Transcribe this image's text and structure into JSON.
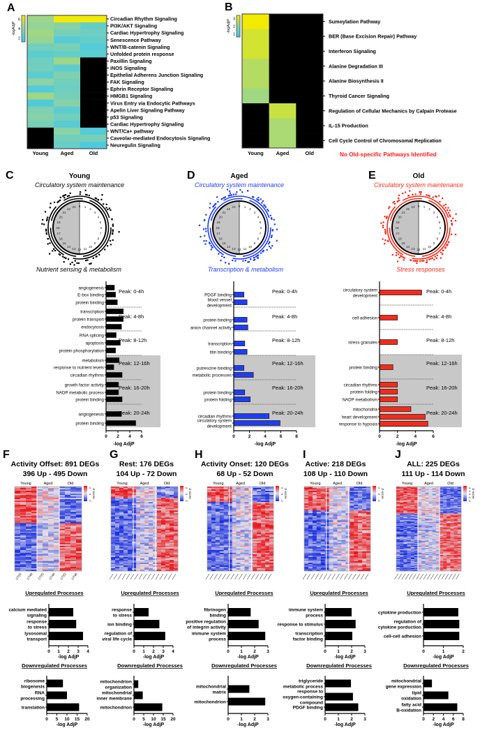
{
  "chart_data": [
    {
      "letter": "A",
      "type": "heatmap",
      "colorbar_label": "-logAdjP",
      "colorbar_ticks": [
        "6",
        "4",
        "2"
      ],
      "colorbar_range": [
        1,
        7
      ],
      "columns": [
        "Young",
        "Aged",
        "Old"
      ],
      "rows": [
        "Circadian Rhythm Signaling",
        "PI3K/AKT Signaling",
        "Cardiac Hypertrophy Signaling",
        "Senescence Pathway",
        "WNT/B-catenin Signaling",
        "Unfolded protein response",
        "Paxillin Signaling",
        "iNOS Signaling",
        "Epithelial Adherens Junction Signaling",
        "FAK Signaling",
        "Ephrin Receptor Signaling",
        "HMGB1 Signaling",
        "Virus Entry via Endocytic Pathways",
        "Apelin Liver Signaling Pathway",
        "p53 Signaling",
        "Cardiac Hypertrophy Signaling",
        "WNT/Ca+ pathway",
        "Caveolar-mediated Endocytosis Signaling",
        "Neuregulin Signaling"
      ],
      "values": [
        [
          4.5,
          7,
          7
        ],
        [
          4.2,
          3.8,
          2.5
        ],
        [
          4.6,
          3.2,
          2.8
        ],
        [
          4.3,
          2.0,
          2.5
        ],
        [
          3.0,
          3.3,
          1.8
        ],
        [
          2.2,
          2.5,
          2.2
        ],
        [
          2.8,
          4.5,
          null
        ],
        [
          3.0,
          2.2,
          null
        ],
        [
          2.2,
          3.5,
          null
        ],
        [
          4.0,
          3.0,
          null
        ],
        [
          1.8,
          2.8,
          null
        ],
        [
          4.6,
          3.2,
          null
        ],
        [
          1.7,
          3.8,
          null
        ],
        [
          3.5,
          2.2,
          null
        ],
        [
          3.8,
          3.0,
          null
        ],
        [
          3.2,
          2.0,
          null
        ],
        [
          null,
          4.0,
          1.8
        ],
        [
          null,
          3.0,
          3.2
        ],
        [
          null,
          2.6,
          1.6
        ]
      ]
    },
    {
      "letter": "B",
      "type": "heatmap",
      "colorbar_label": "-logAdjP",
      "colorbar_ticks": [
        "3",
        "2",
        "1"
      ],
      "colorbar_range": [
        1,
        3
      ],
      "columns": [
        "Young",
        "Aged",
        "Old"
      ],
      "rows": [
        "Sumoylation Pathway",
        "BER (Base Excision Repair) Pathway",
        "Interferon Signaling",
        "Alanine Degradation III",
        "Alanine Biosynthesis II",
        "Thyroid Cancer Signaling",
        "Regulation of Cellular Mechanics by Calpain Protease",
        "IL-15 Production",
        "Cell Cycle Control of Chromosomal Replication"
      ],
      "values": [
        [
          3.0,
          null,
          null
        ],
        [
          2.7,
          null,
          null
        ],
        [
          2.7,
          null,
          null
        ],
        [
          2.4,
          null,
          null
        ],
        [
          2.4,
          null,
          null
        ],
        [
          2.2,
          null,
          null
        ],
        [
          null,
          2.6,
          null
        ],
        [
          null,
          2.3,
          null
        ],
        [
          null,
          2.3,
          null
        ]
      ],
      "note": "No Old-specific Pathways Identified"
    },
    {
      "letter": "C",
      "type": "bar",
      "title": "Young",
      "top_theme": "Circulatory system maintenance",
      "bottom_theme": "Nutrient sensing & metabolism",
      "color": "#000000",
      "xlabel": "-log AdjP",
      "xlim": [
        0,
        6
      ],
      "xticks": [
        "0",
        "2",
        "4",
        "6"
      ],
      "peaks": [
        "Peak: 0-4h",
        "Peak: 4-8h",
        "Peak: 8-12h",
        "Peak: 12-16h",
        "Peak: 16-20h",
        "Peak: 20-24h"
      ],
      "bars": [
        {
          "label": [
            "angiogenesis"
          ],
          "value": 1.4
        },
        {
          "label": [
            "E-box binding"
          ],
          "value": 1.6
        },
        {
          "label": [
            "protein binding"
          ],
          "value": 1.9
        },
        {
          "label": [
            "transcription"
          ],
          "value": 2.9
        },
        {
          "label": [
            "protein transport"
          ],
          "value": 2.9
        },
        {
          "label": [
            "endocytosis"
          ],
          "value": 2.6
        },
        {
          "label": [
            "RNA splicing"
          ],
          "value": 1.7
        },
        {
          "label": [
            "apoptosis"
          ],
          "value": 2.4
        },
        {
          "label": [
            "protein phosphorylation"
          ],
          "value": 1.6
        },
        {
          "label": [
            "metabolism"
          ],
          "value": 2.2
        },
        {
          "label": [
            "response to nutrient levels"
          ],
          "value": 1.3
        },
        {
          "label": [
            "circadian rhythms"
          ],
          "value": 2.7
        },
        {
          "label": [
            "growth factor activity"
          ],
          "value": 2.1
        },
        {
          "label": [
            "NADP metabolic process"
          ],
          "value": 2.1
        },
        {
          "label": [
            "protein binding"
          ],
          "value": 2.7
        },
        {
          "label": [
            "angiogenesis"
          ],
          "value": 2.6
        },
        {
          "label": [
            "protein binding"
          ],
          "value": 5.0
        }
      ]
    },
    {
      "letter": "D",
      "type": "bar",
      "title": "Aged",
      "top_theme": "Circulatory system maintenance",
      "bottom_theme": "Transcription & metabolism",
      "color": "#1f3df5",
      "xlabel": "-log AdjP",
      "xlim": [
        0,
        8
      ],
      "xticks": [
        "0",
        "2",
        "4",
        "6",
        "8"
      ],
      "peaks": [
        "Peak: 0-4h",
        "Peak: 4-8h",
        "Peak: 8-12h",
        "Peak: 12-16h",
        "Peak: 16-20h",
        "Peak: 20-24h"
      ],
      "bars": [
        {
          "label": [
            "PDGF binding"
          ],
          "value": 1.3
        },
        {
          "label": [
            "blood vessel",
            "development"
          ],
          "value": 1.7
        },
        {
          "label": [
            "protein binding"
          ],
          "value": 1.7
        },
        {
          "label": [
            "anion channel activity"
          ],
          "value": 1.8
        },
        {
          "label": [
            "transcription"
          ],
          "value": 1.4
        },
        {
          "label": [
            "titin binding"
          ],
          "value": 1.7
        },
        {
          "label": [
            "putrescine binding"
          ],
          "value": 1.3
        },
        {
          "label": [
            "metabolic processes"
          ],
          "value": 2.5
        },
        {
          "label": [
            "protein binding"
          ],
          "value": 1.4
        },
        {
          "label": [
            "protein folding"
          ],
          "value": 2.1
        },
        {
          "label": [
            "circadian rhythms"
          ],
          "value": 4.5
        },
        {
          "label": [
            "circulatory system",
            "development"
          ],
          "value": 5.9
        }
      ]
    },
    {
      "letter": "E",
      "type": "bar",
      "title": "Old",
      "top_theme": "Circulatory system maintenance",
      "bottom_theme": "Stress responses",
      "color": "#f52a1a",
      "xlabel": "-log AdjP",
      "xlim": [
        0,
        6
      ],
      "xticks": [
        "0",
        "2",
        "4",
        "6"
      ],
      "peaks": [
        "Peak: 0-4h",
        "Peak: 4-8h",
        "Peak: 8-12h",
        "Peak: 12-16h",
        "Peak: 16-20h",
        "Peak: 20-24h"
      ],
      "bars": [
        {
          "label": [
            "circulatory system",
            "development"
          ],
          "value": 4.7
        },
        {
          "label": [
            "cell adhesion"
          ],
          "value": 2.0
        },
        {
          "label": [
            "stress granules"
          ],
          "value": 2.0
        },
        {
          "label": [
            "protein binding"
          ],
          "value": 1.5
        },
        {
          "label": [
            "circadian rhythms"
          ],
          "value": 2.0
        },
        {
          "label": [
            "protein folding"
          ],
          "value": 2.0
        },
        {
          "label": [
            "NADP metabolism"
          ],
          "value": 2.0
        },
        {
          "label": [
            "mitochondria"
          ],
          "value": 3.5
        },
        {
          "label": [
            "heart development"
          ],
          "value": 5.1
        },
        {
          "label": [
            "response to hypoxia"
          ],
          "value": 5.4
        }
      ]
    },
    {
      "letter": "F",
      "type": "heatmap",
      "title": "Activity Offset: 891 DEGs",
      "subtitle": "396 Up - 495 Down",
      "groups": [
        "Young",
        "Aged",
        "Old"
      ],
      "colorbar_label": "Z-score",
      "colorbar_ticks": [
        "2",
        "0",
        "-2"
      ],
      "column_labels": [
        "CT22",
        "CT46",
        "CT22",
        "CT46",
        "CT22",
        "CT46"
      ],
      "up": {
        "header": "Upregulated Processes",
        "xlabel": "-log AdjP",
        "xlim": [
          0,
          4
        ],
        "xticks": [
          "0",
          "1",
          "2",
          "3",
          "4"
        ],
        "bars": [
          {
            "label": [
              "calcium mediated",
              "signaling"
            ],
            "value": 2.5
          },
          {
            "label": [
              "response",
              "to stress"
            ],
            "value": 2.8
          },
          {
            "label": [
              "lysosomal",
              "transport"
            ],
            "value": 3.5
          }
        ]
      },
      "down": {
        "header": "Downregulated Processes",
        "xlabel": "-log AdjP",
        "xlim": [
          0,
          20
        ],
        "xticks": [
          "0",
          "5",
          "10",
          "15",
          "20"
        ],
        "bars": [
          {
            "label": [
              "ribosome",
              "biogenesis"
            ],
            "value": 8
          },
          {
            "label": [
              "RNA",
              "processing"
            ],
            "value": 10
          },
          {
            "label": [
              "translation"
            ],
            "value": 16
          }
        ]
      }
    },
    {
      "letter": "G",
      "type": "heatmap",
      "title": "Rest: 176 DEGs",
      "subtitle": "104 Up - 72 Down",
      "groups": [
        "Young",
        "Aged",
        "Old"
      ],
      "colorbar_label": "Z-score",
      "colorbar_ticks": [
        "2",
        "0",
        "-2"
      ],
      "up": {
        "header": "Upregulated Processes",
        "xlabel": "-log AdjP",
        "xlim": [
          0,
          4
        ],
        "xticks": [
          "0",
          "1",
          "2",
          "3",
          "4"
        ],
        "bars": [
          {
            "label": [
              "response",
              "to stress"
            ],
            "value": 1.5
          },
          {
            "label": [
              "ion binding"
            ],
            "value": 2.6
          },
          {
            "label": [
              "regulation of",
              "viral life cycle"
            ],
            "value": 3.2
          }
        ]
      },
      "down": {
        "header": "Downregulated Processes",
        "xlabel": "-log AdjP",
        "xlim": [
          0,
          20
        ],
        "xticks": [
          "0",
          "5",
          "10",
          "15",
          "20"
        ],
        "bars": [
          {
            "label": [
              "mitochondrion",
              "organization"
            ],
            "value": 2.2
          },
          {
            "label": [
              "mitochondrial",
              "inner membrane"
            ],
            "value": 4.5
          },
          {
            "label": [
              "mitochondrion"
            ],
            "value": 14.5
          }
        ]
      }
    },
    {
      "letter": "H",
      "type": "heatmap",
      "title": "Activity Onset: 120 DEGs",
      "subtitle": "68 Up - 52 Down",
      "groups": [
        "Young",
        "Aged",
        "Old"
      ],
      "colorbar_label": "Z-score",
      "colorbar_ticks": [
        "2",
        "0",
        "-2"
      ],
      "up": {
        "header": "Upregulated Processes",
        "xlabel": "-log AdjP",
        "xlim": [
          0,
          3
        ],
        "xticks": [
          "0",
          "1",
          "2",
          "3"
        ],
        "bars": [
          {
            "label": [
              "fibrinogen",
              "binding"
            ],
            "value": 1.7
          },
          {
            "label": [
              "positive regulation",
              "of integrin activity"
            ],
            "value": 2.3
          },
          {
            "label": [
              "immune system",
              "process"
            ],
            "value": 2.8
          }
        ]
      },
      "down": {
        "header": "Downregulated Processes",
        "xlabel": "-log AdjP",
        "xlim": [
          0,
          3
        ],
        "xticks": [
          "0",
          "1",
          "2",
          "3"
        ],
        "bars": [
          {
            "label": [
              "mitochondrial",
              "matrix"
            ],
            "value": 1.6
          },
          {
            "label": [
              "mitochondrion"
            ],
            "value": 2.8
          }
        ]
      }
    },
    {
      "letter": "I",
      "type": "heatmap",
      "title": "Active: 218 DEGs",
      "subtitle": "108 Up - 110 Down",
      "groups": [
        "Young",
        "Aged",
        "Old"
      ],
      "colorbar_label": "Z-score",
      "colorbar_ticks": [
        "2",
        "0",
        "-2"
      ],
      "up": {
        "header": "Upregulated Processes",
        "xlabel": "-log AdjP",
        "xlim": [
          0,
          3
        ],
        "xticks": [
          "0",
          "1",
          "2",
          "3"
        ],
        "bars": [
          {
            "label": [
              "immune system",
              "process"
            ],
            "value": 2.0
          },
          {
            "label": [
              "response to stimulus"
            ],
            "value": 2.3
          },
          {
            "label": [
              "transcription",
              "factor binding"
            ],
            "value": 2.05
          }
        ]
      },
      "down": {
        "header": "Downregulated Processes",
        "xlabel": "-log AdjP",
        "xlim": [
          0,
          3
        ],
        "xticks": [
          "0",
          "1",
          "2",
          "3"
        ],
        "bars": [
          {
            "label": [
              "triglyceride",
              "metabolic process"
            ],
            "value": 1.95
          },
          {
            "label": [
              "response to",
              "oxygen-containing",
              "compound"
            ],
            "value": 2.1
          },
          {
            "label": [
              "PDGF binding"
            ],
            "value": 2.5
          }
        ]
      }
    },
    {
      "letter": "J",
      "type": "heatmap",
      "title": "ALL: 225 DEGs",
      "subtitle": "111 Up - 114 Down",
      "groups": [
        "Young",
        "Aged",
        "Old"
      ],
      "colorbar_label": "Z-score",
      "colorbar_ticks": [
        "4",
        "2",
        "0",
        "-2",
        "-4"
      ],
      "up": {
        "header": "Upregulated Processes",
        "xlabel": "-log AdjP",
        "xlim": [
          0,
          2
        ],
        "xticks": [
          "0",
          "1",
          "2"
        ],
        "bars": [
          {
            "label": [
              "cytokine production"
            ],
            "value": 1.75
          },
          {
            "label": [
              "regulation of",
              "cytokine porduction"
            ],
            "value": 1.8
          },
          {
            "label": [
              "cell-cell adhesion"
            ],
            "value": 1.8
          }
        ]
      },
      "down": {
        "header": "Downregulated Processes",
        "xlabel": "-log AdjP",
        "xlim": [
          0,
          8
        ],
        "xticks": [
          "0",
          "2",
          "4",
          "6",
          "8"
        ],
        "bars": [
          {
            "label": [
              "mitochondrial",
              "gene expression"
            ],
            "value": 1.7
          },
          {
            "label": [
              "lipid",
              "oxidation"
            ],
            "value": 5.0
          },
          {
            "label": [
              "fatty acid",
              "B-oxidation"
            ],
            "value": 6.8
          }
        ]
      }
    }
  ]
}
